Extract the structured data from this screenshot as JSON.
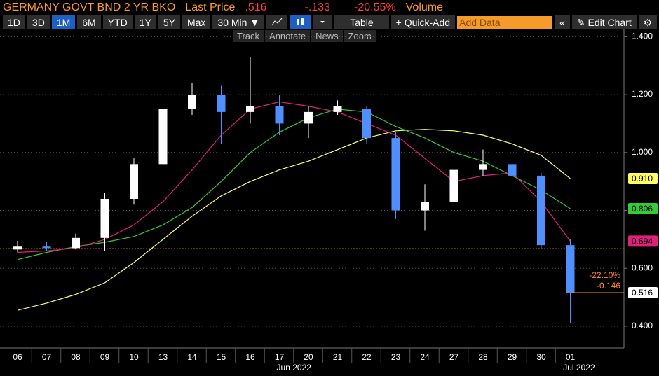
{
  "header": {
    "security": "GERMANY GOVT BND 2 YR BKO",
    "last_price_label": "Last Price",
    "last_price": ".516",
    "change": "-.133",
    "change_pct": "-20.55%",
    "volume_label": "Volume"
  },
  "toolbar": {
    "ranges": [
      "1D",
      "3D",
      "1M",
      "6M",
      "YTD",
      "1Y",
      "5Y",
      "Max"
    ],
    "selected_range": "1M",
    "interval": "30 Min ▼",
    "table": "Table",
    "quick_add": "+ Quick-Add",
    "add_data": "Add Data",
    "back": "«",
    "edit_chart": "✎ Edit Chart",
    "settings": "⚙"
  },
  "tools": [
    "Track",
    "Annotate",
    "News",
    "Zoom"
  ],
  "chart_data": {
    "type": "candlestick",
    "categories": [
      "06",
      "07",
      "08",
      "09",
      "10",
      "13",
      "14",
      "15",
      "16",
      "17",
      "20",
      "21",
      "22",
      "23",
      "24",
      "27",
      "28",
      "29",
      "30",
      "01"
    ],
    "months": [
      "Jun 2022",
      "Jul 2022"
    ],
    "candles": {
      "open": [
        0.665,
        0.675,
        0.67,
        0.705,
        0.84,
        0.96,
        1.15,
        1.2,
        1.14,
        1.16,
        1.1,
        1.14,
        1.15,
        1.05,
        0.8,
        0.83,
        0.94,
        0.96,
        0.92,
        0.68
      ],
      "high": [
        0.695,
        0.69,
        0.72,
        0.86,
        0.98,
        1.18,
        1.24,
        1.23,
        1.33,
        1.2,
        1.16,
        1.18,
        1.16,
        1.07,
        0.89,
        0.96,
        1.01,
        0.98,
        0.93,
        0.7
      ],
      "low": [
        0.655,
        0.66,
        0.665,
        0.66,
        0.82,
        0.95,
        1.13,
        1.03,
        1.1,
        1.06,
        1.05,
        1.13,
        1.03,
        0.77,
        0.73,
        0.8,
        0.92,
        0.85,
        0.67,
        0.41
      ],
      "close": [
        0.675,
        0.67,
        0.705,
        0.84,
        0.96,
        1.15,
        1.2,
        1.14,
        1.16,
        1.1,
        1.14,
        1.16,
        1.05,
        0.8,
        0.83,
        0.94,
        0.96,
        0.92,
        0.68,
        0.516
      ],
      "up_color": "#ffffff",
      "down_color": "#4f8fff"
    },
    "lines": [
      {
        "color": "#ffff66",
        "values": [
          0.455,
          0.48,
          0.51,
          0.55,
          0.62,
          0.7,
          0.78,
          0.85,
          0.9,
          0.94,
          0.97,
          1.01,
          1.05,
          1.075,
          1.08,
          1.075,
          1.06,
          1.03,
          0.99,
          0.91
        ]
      },
      {
        "color": "#33cc33",
        "values": [
          0.63,
          0.655,
          0.675,
          0.69,
          0.71,
          0.75,
          0.81,
          0.9,
          1.0,
          1.07,
          1.12,
          1.15,
          1.14,
          1.09,
          1.05,
          1.0,
          0.97,
          0.92,
          0.87,
          0.806
        ]
      },
      {
        "color": "#e0207a",
        "values": [
          0.655,
          0.66,
          0.67,
          0.7,
          0.75,
          0.83,
          0.94,
          1.06,
          1.15,
          1.175,
          1.16,
          1.14,
          1.1,
          1.06,
          0.98,
          0.9,
          0.92,
          0.93,
          0.83,
          0.694
        ]
      }
    ],
    "ref_line": 0.668,
    "ref_color": "#ff8c1a",
    "last_values": [
      {
        "value": 0.91,
        "label": "0.910",
        "color": "#ffff66"
      },
      {
        "value": 0.806,
        "label": "0.806",
        "color": "#33cc33"
      },
      {
        "value": 0.694,
        "label": "0.694",
        "color": "#e0207a"
      },
      {
        "value": 0.516,
        "label": "0.516",
        "color": "#ffffff"
      }
    ],
    "annotations": [
      "-22.10%",
      "-0.146"
    ],
    "ylim": [
      0.325,
      1.425
    ],
    "yticks": [
      {
        "value": 0.4,
        "label": "0.400"
      },
      {
        "value": 0.6,
        "label": "0.600"
      },
      {
        "value": 0.8,
        "label": "0.800"
      },
      {
        "value": 1.0,
        "label": "1.000"
      },
      {
        "value": 1.2,
        "label": "1.200"
      },
      {
        "value": 1.4,
        "label": "1.400"
      }
    ],
    "grid": true
  }
}
